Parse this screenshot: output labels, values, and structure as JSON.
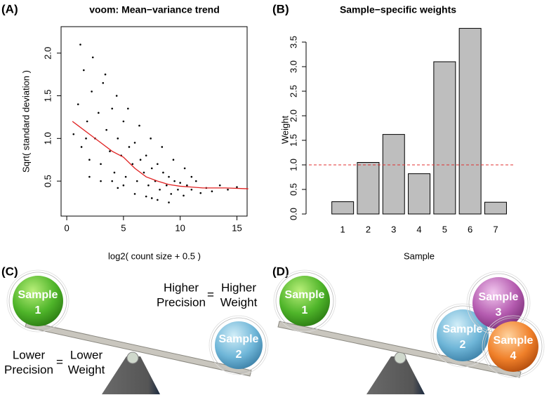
{
  "chart_data": [
    {
      "type": "scatter",
      "title": "voom: Mean−variance trend",
      "xlabel": "log2( count size + 0.5 )",
      "ylabel": "Sqrt( standard deviation )",
      "x": [
        0.6,
        1.0,
        1.3,
        1.5,
        1.8,
        2.0,
        2.2,
        2.5,
        2.8,
        3.0,
        3.2,
        3.5,
        3.8,
        4.0,
        4.2,
        4.5,
        4.8,
        5.0,
        5.2,
        5.5,
        5.8,
        6.0,
        6.2,
        6.5,
        6.8,
        7.0,
        7.2,
        7.5,
        7.8,
        8.0,
        8.2,
        8.5,
        8.8,
        9.0,
        9.2,
        9.5,
        9.8,
        10.0,
        10.3,
        10.6,
        11.0,
        11.4,
        11.8,
        12.3,
        12.8,
        13.5,
        14.2,
        15.0,
        1.2,
        2.3,
        3.4,
        4.4,
        5.4,
        6.4,
        7.4,
        8.4,
        9.4,
        10.4,
        3.0,
        4.5,
        6.0,
        7.5,
        9.0,
        2.0,
        5.0,
        8.0,
        1.7,
        4.0,
        7.0,
        11.0
      ],
      "y": [
        1.05,
        1.4,
        0.9,
        1.8,
        1.2,
        0.75,
        1.55,
        1.0,
        1.3,
        0.7,
        1.65,
        1.1,
        0.85,
        1.35,
        0.6,
        1.0,
        0.8,
        1.2,
        0.55,
        0.9,
        0.7,
        0.95,
        0.5,
        0.75,
        0.6,
        0.8,
        0.45,
        0.65,
        0.5,
        0.7,
        0.4,
        0.6,
        0.45,
        0.55,
        0.35,
        0.5,
        0.4,
        0.48,
        0.33,
        0.45,
        0.4,
        0.5,
        0.36,
        0.42,
        0.38,
        0.45,
        0.4,
        0.43,
        2.1,
        1.95,
        1.75,
        1.5,
        1.35,
        1.15,
        1.0,
        0.9,
        0.75,
        0.65,
        0.5,
        0.42,
        0.35,
        0.3,
        0.25,
        0.55,
        0.45,
        0.28,
        1.0,
        0.5,
        0.32,
        0.55
      ],
      "color": "#000000",
      "trend": {
        "x": [
          0.5,
          1,
          2,
          3,
          4,
          5,
          6,
          7,
          8,
          9,
          10,
          11,
          12,
          14,
          16
        ],
        "y": [
          1.2,
          1.15,
          1.05,
          0.95,
          0.85,
          0.78,
          0.65,
          0.55,
          0.5,
          0.46,
          0.44,
          0.43,
          0.42,
          0.42,
          0.41
        ],
        "color": "#e02020"
      },
      "xlim": [
        -0.5,
        15.9
      ],
      "ylim": [
        0.09,
        2.31
      ],
      "xticks": [
        0,
        5,
        10,
        15
      ],
      "yticks": [
        0.5,
        {
          "value": 1,
          "label": "1.0"
        },
        1.5,
        {
          "value": 2,
          "label": "2.0"
        }
      ]
    },
    {
      "type": "bar",
      "title": "Sample−specific weights",
      "xlabel": "Sample",
      "ylabel": "Weight",
      "categories": [
        "1",
        "2",
        "3",
        "4",
        "5",
        "6",
        "7"
      ],
      "values": [
        0.25,
        1.05,
        1.62,
        0.82,
        3.1,
        3.78,
        0.24
      ],
      "color": "#bebebe",
      "ref_line": {
        "value": 1,
        "color": "#e03030"
      },
      "ylim": [
        0,
        3.8
      ],
      "yticks": [
        {
          "value": 0,
          "label": "0.0"
        },
        0.5,
        {
          "value": 1,
          "label": "1.0"
        },
        1.5,
        {
          "value": 2,
          "label": "2.0"
        },
        2.5,
        {
          "value": 3,
          "label": "3.0"
        },
        3.5
      ]
    }
  ],
  "panel_labels": [
    "(A)",
    "(B)",
    "(C)",
    "(D)"
  ],
  "panel_c": {
    "balls": [
      {
        "label": "Sample",
        "number": "1"
      },
      {
        "label": "Sample",
        "number": "2"
      }
    ],
    "upper": {
      "left": [
        "Higher",
        "Precision"
      ],
      "eq": "=",
      "right": [
        "Higher",
        "Weight"
      ]
    },
    "lower": {
      "left": [
        "Lower",
        "Precision"
      ],
      "eq": "=",
      "right": [
        "Lower",
        "Weight"
      ]
    }
  },
  "panel_d": {
    "balls": [
      {
        "label": "Sample",
        "number": "1"
      },
      {
        "label": "Sample",
        "number": "2"
      },
      {
        "label": "Sample",
        "number": "3"
      },
      {
        "label": "Sample",
        "number": "4"
      }
    ]
  }
}
